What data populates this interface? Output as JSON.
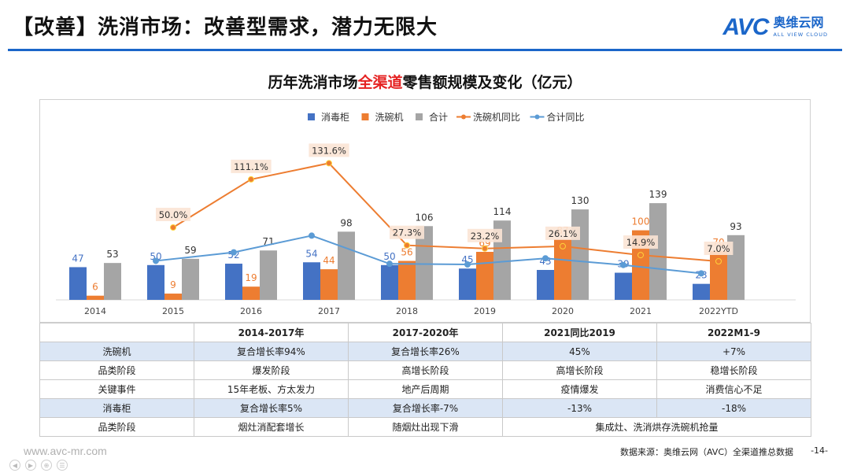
{
  "header": {
    "title": "【改善】洗消市场：改善型需求，潜力无限大",
    "logo_mark": "AVC",
    "logo_cn": "奥维云网",
    "logo_en": "ALL VIEW CLOUD"
  },
  "chart_title": {
    "prefix": "历年洗消市场",
    "highlight": "全渠道",
    "suffix": "零售额规模及变化（亿元）"
  },
  "colors": {
    "disinfect": "#4472c4",
    "dishwasher": "#ed7d31",
    "total": "#a5a5a5",
    "dishwasher_yoy": "#ed7d31",
    "total_yoy": "#5b9bd5",
    "accent": "#1b66c9",
    "table_highlight": "#dbe6f5"
  },
  "chart_data": {
    "type": "bar",
    "categories": [
      "2014",
      "2015",
      "2016",
      "2017",
      "2018",
      "2019",
      "2020",
      "2021",
      "2022YTD"
    ],
    "series": [
      {
        "name": "消毒柜",
        "type": "bar",
        "values": [
          47,
          50,
          52,
          54,
          50,
          45,
          43,
          39,
          23
        ]
      },
      {
        "name": "洗碗机",
        "type": "bar",
        "values": [
          6,
          9,
          19,
          44,
          56,
          69,
          87,
          100,
          70
        ]
      },
      {
        "name": "合计",
        "type": "bar",
        "values": [
          53,
          59,
          71,
          98,
          106,
          114,
          130,
          139,
          93
        ]
      },
      {
        "name": "洗碗机同比",
        "type": "line",
        "values": [
          null,
          50.0,
          111.1,
          131.6,
          27.3,
          23.2,
          26.1,
          14.9,
          7.0
        ],
        "labels": [
          "",
          "50.0%",
          "111.1%",
          "131.6%",
          "27.3%",
          "23.2%",
          "26.1%",
          "14.9%",
          "7.0%"
        ]
      },
      {
        "name": "合计同比",
        "type": "line",
        "values": [
          null,
          11.3,
          20.3,
          38.0,
          8.2,
          7.5,
          14.0,
          6.9,
          -2.0
        ]
      }
    ],
    "legend": "top-center",
    "grid": false
  },
  "table": {
    "header": [
      "",
      "2014-2017年",
      "2017-2020年",
      "2021同比2019",
      "2022M1-9"
    ],
    "rows": [
      {
        "cells": [
          "洗碗机",
          "复合增长率94%",
          "复合增长率26%",
          "45%",
          "+7%"
        ],
        "highlight": true
      },
      {
        "cells": [
          "品类阶段",
          "爆发阶段",
          "高增长阶段",
          "高增长阶段",
          "稳增长阶段"
        ],
        "highlight": false
      },
      {
        "cells": [
          "关键事件",
          "15年老板、方太发力",
          "地产后周期",
          "疫情爆发",
          "消费信心不足"
        ],
        "highlight": false
      },
      {
        "cells": [
          "消毒柜",
          "复合增长率5%",
          "复合增长率-7%",
          "-13%",
          "-18%"
        ],
        "highlight": true
      },
      {
        "cells": [
          "品类阶段",
          "烟灶消配套增长",
          "随烟灶出现下滑",
          "集成灶、洗消烘存洗碗机抢量"
        ],
        "highlight": false,
        "merge_last": true
      }
    ]
  },
  "footer": {
    "url": "www.avc-mr.com",
    "source": "数据来源：奥维云网（AVC）全渠道推总数据",
    "page": "-14-"
  }
}
